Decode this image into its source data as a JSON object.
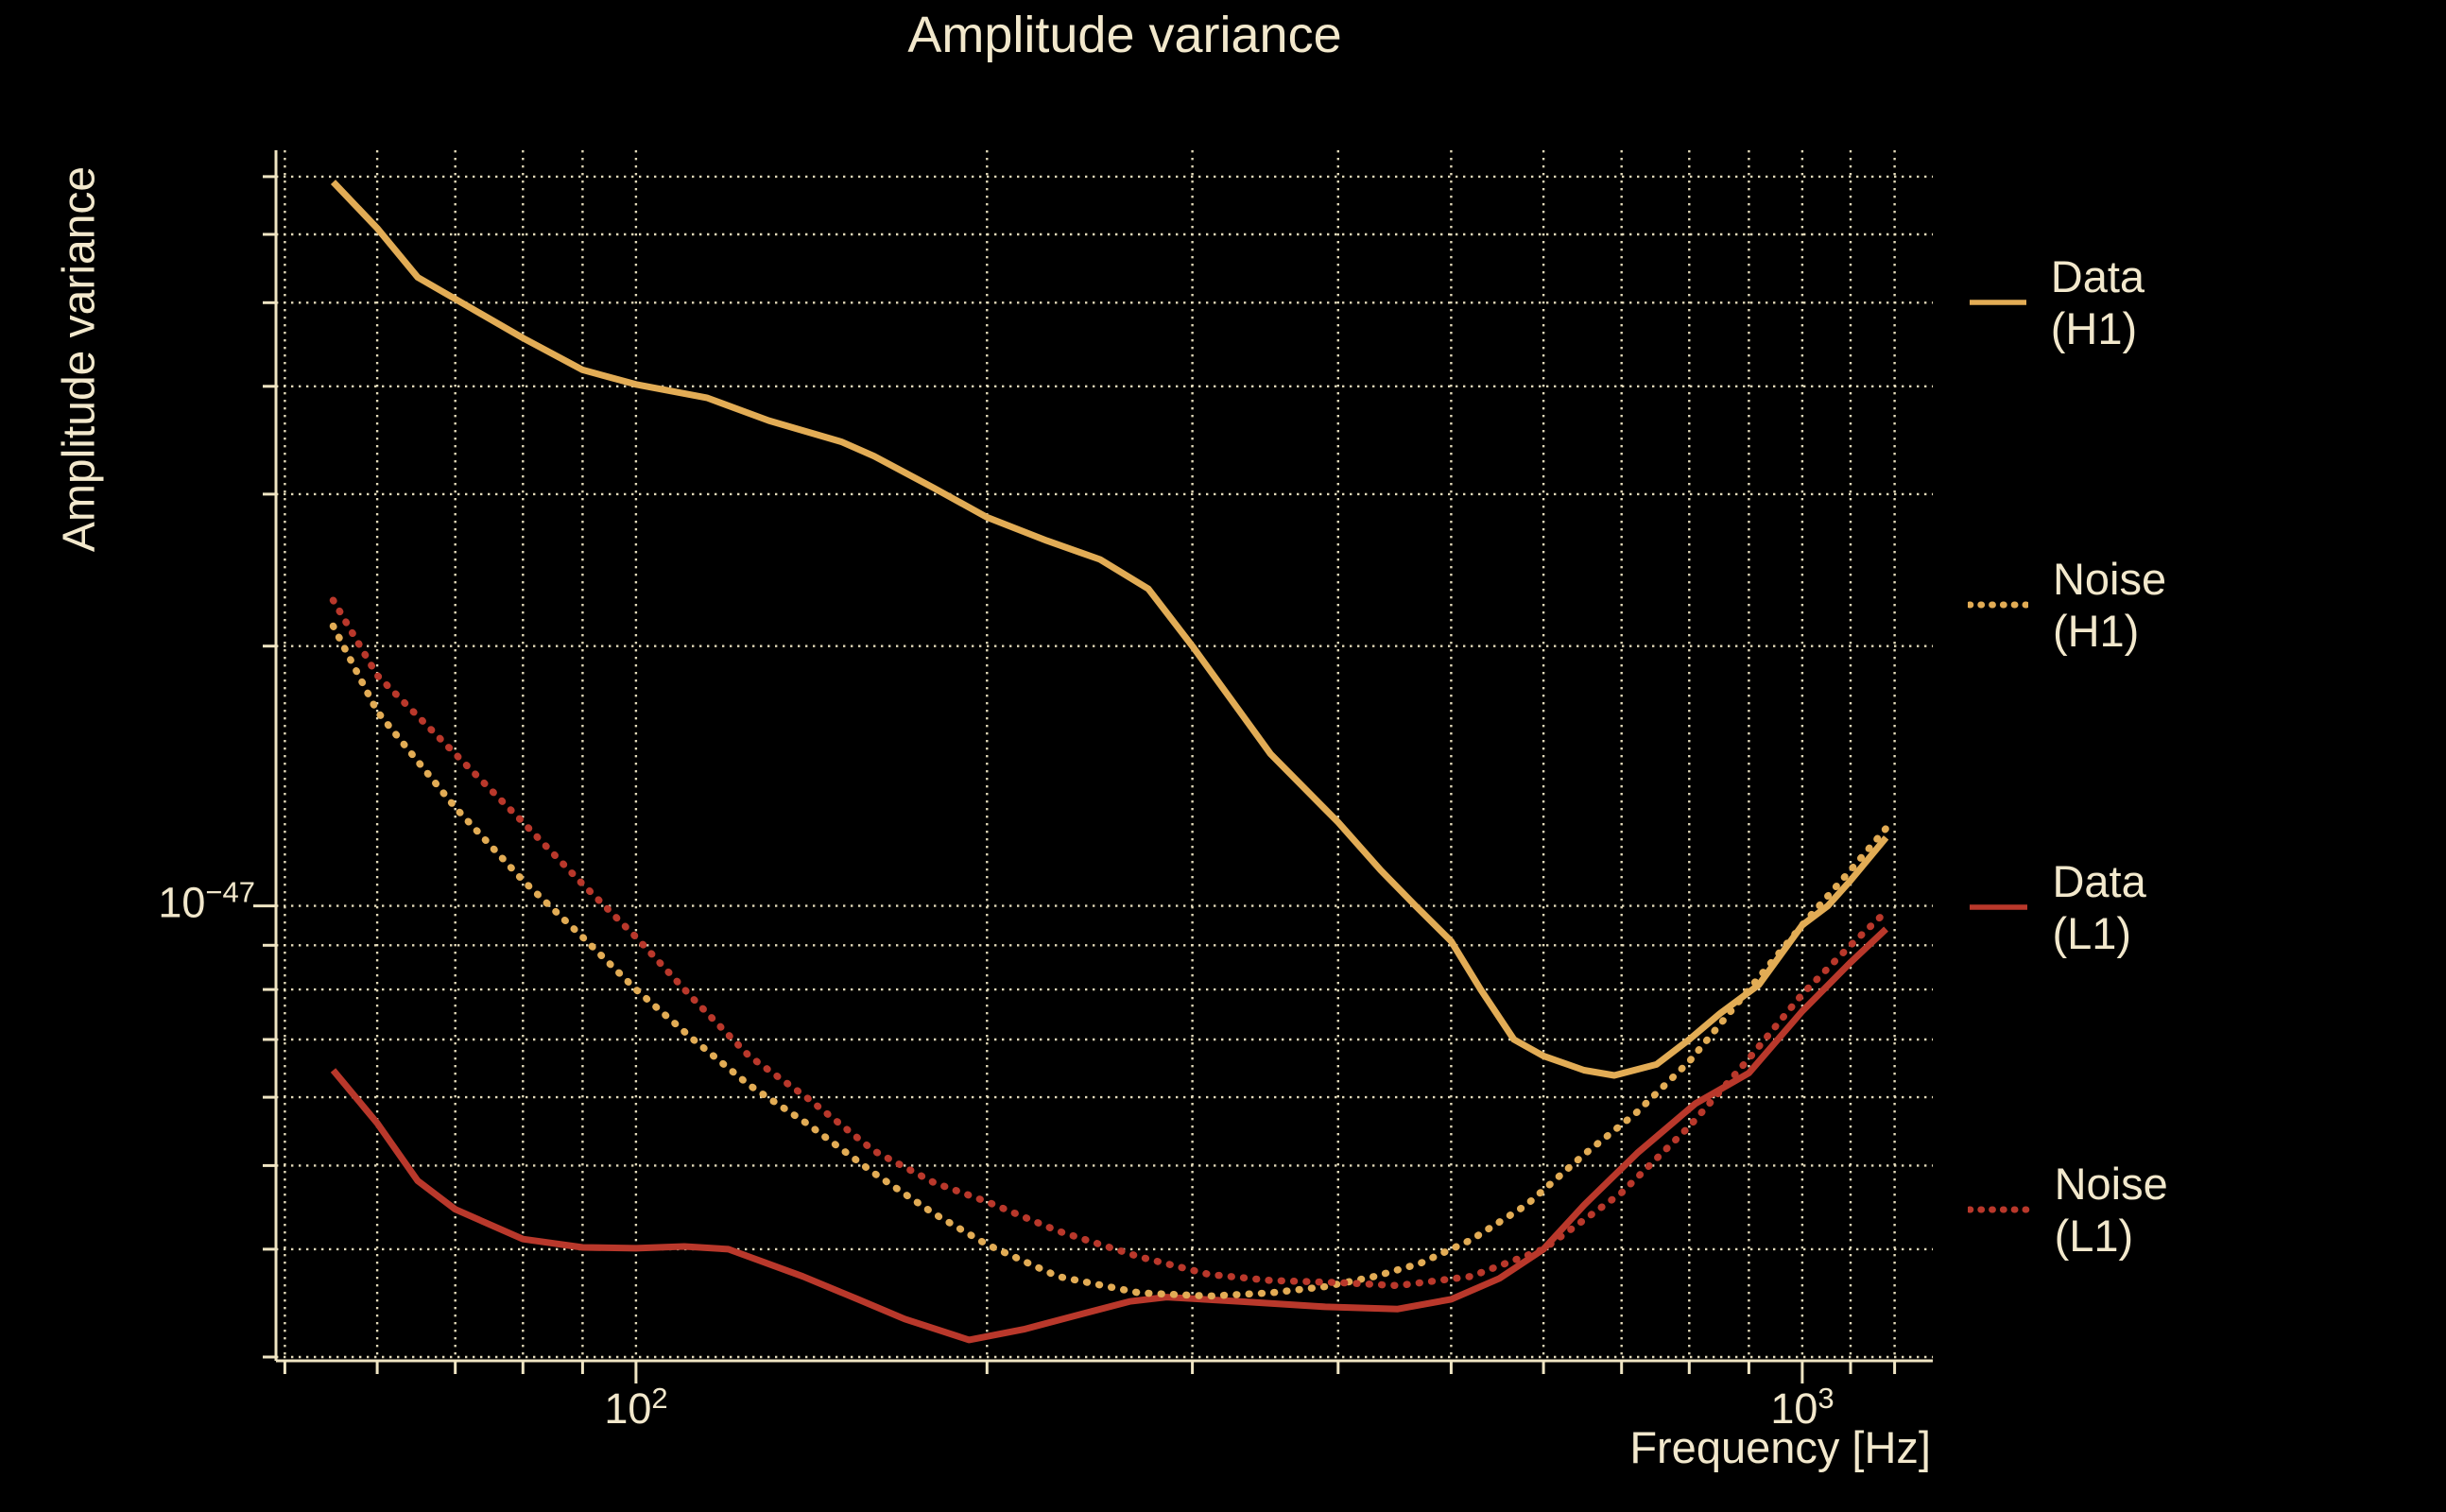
{
  "title": "Amplitude variance",
  "ylabel": "Amplitude variance",
  "xlabel": "Frequency [Hz]",
  "colors": {
    "background": "#000000",
    "text": "#f2e8cc",
    "grid": "#efe5c3",
    "gold": "#e2ac55",
    "red": "#b9382b"
  },
  "axes": {
    "x_scale": "log",
    "y_scale": "log",
    "xlim": [
      49.13,
      1294
    ],
    "ylim": [
      2.97e-48,
      7.51e-47
    ],
    "x_gridlines": [
      50,
      60,
      70,
      80,
      90,
      100,
      200,
      300,
      400,
      500,
      600,
      700,
      800,
      900,
      1000,
      1100,
      1200
    ],
    "x_major": [
      100,
      1000
    ],
    "y_gridlines": [
      3e-48,
      4e-48,
      5e-48,
      6e-48,
      7e-48,
      8e-48,
      9e-48,
      1e-47,
      2e-47,
      3e-47,
      4e-47,
      5e-47,
      6e-47,
      7e-47
    ],
    "y_major": [
      1e-47
    ],
    "x_ticks": [
      {
        "base": "10",
        "exp": "2",
        "value": 100
      },
      {
        "base": "10",
        "exp": "3",
        "value": 1000
      }
    ],
    "y_ticks": [
      {
        "base": "10",
        "exp": "−47",
        "value": 1e-47
      }
    ]
  },
  "legend": [
    {
      "label": "Data (H1)",
      "color": "gold",
      "style": "solid"
    },
    {
      "label": "Noise (H1)",
      "color": "gold",
      "style": "dotted"
    },
    {
      "label": "Data (L1)",
      "color": "red",
      "style": "solid"
    },
    {
      "label": "Noise (L1)",
      "color": "red",
      "style": "dotted"
    }
  ],
  "chart_data": {
    "type": "line",
    "title": "Amplitude variance",
    "xlabel": "Frequency [Hz]",
    "ylabel": "Amplitude variance",
    "grid": true,
    "legend_position": "right",
    "series": [
      {
        "name": "Data (H1)",
        "color": "gold",
        "style": "solid",
        "x": [
          55,
          60,
          65,
          70,
          80,
          90,
          100,
          115,
          130,
          150,
          160,
          180,
          200,
          225,
          250,
          275,
          300,
          350,
          400,
          435,
          466,
          500,
          530,
          566,
          600,
          650,
          690,
          750,
          800,
          850,
          918,
          1000,
          1052,
          1100,
          1180
        ],
        "y": [
          6.9e-47,
          6.1e-47,
          5.35e-47,
          5.05e-47,
          4.55e-47,
          4.18e-47,
          4.02e-47,
          3.88e-47,
          3.65e-47,
          3.45e-47,
          3.32e-47,
          3.05e-47,
          2.82e-47,
          2.65e-47,
          2.52e-47,
          2.33e-47,
          2e-47,
          1.5e-47,
          1.25e-47,
          1.1e-47,
          1e-47,
          9.1e-48,
          8e-48,
          7e-48,
          6.7e-48,
          6.45e-48,
          6.36e-48,
          6.55e-48,
          7e-48,
          7.5e-48,
          8.1e-48,
          9.5e-48,
          1e-47,
          1.07e-47,
          1.2e-47
        ]
      },
      {
        "name": "Noise (H1)",
        "color": "gold",
        "style": "dotted",
        "x": [
          55,
          60,
          70,
          80,
          90,
          100,
          112,
          125,
          140,
          160,
          180,
          200,
          230,
          270,
          310,
          350,
          390,
          430,
          470,
          520,
          580,
          650,
          720,
          800,
          900,
          1000,
          1100,
          1180
        ],
        "y": [
          2.11e-47,
          1.68e-47,
          1.3e-47,
          1.07e-47,
          9.2e-48,
          8e-48,
          7e-48,
          6.2e-48,
          5.6e-48,
          4.9e-48,
          4.4e-48,
          4.05e-48,
          3.72e-48,
          3.56e-48,
          3.53e-48,
          3.56e-48,
          3.62e-48,
          3.72e-48,
          3.85e-48,
          4.1e-48,
          4.5e-48,
          5.15e-48,
          5.75e-48,
          6.6e-48,
          8e-48,
          9.5e-48,
          1.1e-47,
          1.23e-47
        ]
      },
      {
        "name": "Data (L1)",
        "color": "red",
        "style": "solid",
        "x": [
          55,
          60,
          65,
          70,
          80,
          90,
          100,
          110,
          120,
          139,
          155,
          170,
          193,
          215,
          240,
          265,
          285,
          330,
          390,
          450,
          500,
          550,
          600,
          650,
          722,
          810,
          900,
          1000,
          1100,
          1180
        ],
        "y": [
          6.45e-48,
          5.6e-48,
          4.8e-48,
          4.45e-48,
          4.11e-48,
          4.02e-48,
          4.01e-48,
          4.03e-48,
          4e-48,
          3.72e-48,
          3.5e-48,
          3.32e-48,
          3.14e-48,
          3.23e-48,
          3.36e-48,
          3.48e-48,
          3.52e-48,
          3.48e-48,
          3.43e-48,
          3.41e-48,
          3.5e-48,
          3.7e-48,
          4e-48,
          4.5e-48,
          5.17e-48,
          5.9e-48,
          6.4e-48,
          7.55e-48,
          8.6e-48,
          9.4e-48
        ]
      },
      {
        "name": "Noise (L1)",
        "color": "red",
        "style": "dotted",
        "x": [
          55,
          60,
          70,
          80,
          90,
          100,
          112,
          125,
          140,
          160,
          180,
          200,
          230,
          270,
          310,
          350,
          400,
          450,
          520,
          600,
          700,
          800,
          900,
          1000,
          1100,
          1180
        ],
        "y": [
          2.26e-47,
          1.85e-47,
          1.5e-47,
          1.25e-47,
          1.06e-47,
          9.2e-48,
          7.8e-48,
          6.7e-48,
          6e-48,
          5.2e-48,
          4.78e-48,
          4.54e-48,
          4.2e-48,
          3.92e-48,
          3.74e-48,
          3.68e-48,
          3.66e-48,
          3.63e-48,
          3.72e-48,
          4e-48,
          4.65e-48,
          5.55e-48,
          6.65e-48,
          7.9e-48,
          9e-48,
          9.85e-48
        ]
      }
    ]
  }
}
